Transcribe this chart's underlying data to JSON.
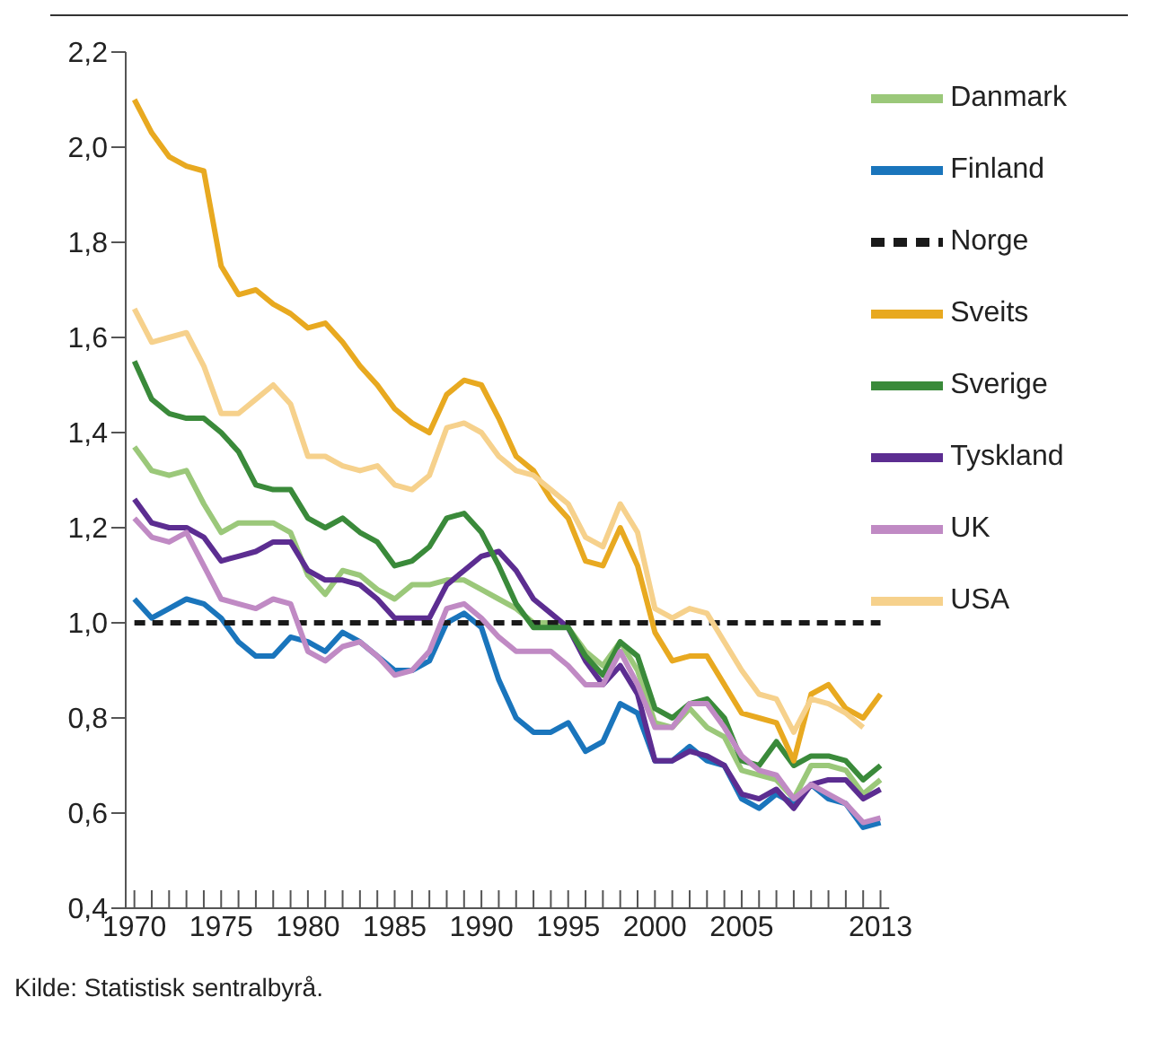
{
  "chart_data": {
    "type": "line",
    "x": [
      1970,
      1971,
      1972,
      1973,
      1974,
      1975,
      1976,
      1977,
      1978,
      1979,
      1980,
      1981,
      1982,
      1983,
      1984,
      1985,
      1986,
      1987,
      1988,
      1989,
      1990,
      1991,
      1992,
      1993,
      1994,
      1995,
      1996,
      1997,
      1998,
      1999,
      2000,
      2001,
      2002,
      2003,
      2004,
      2005,
      2006,
      2007,
      2008,
      2009,
      2010,
      2011,
      2012,
      2013
    ],
    "series": [
      {
        "name": "Danmark",
        "color": "#9bc87a",
        "values": [
          1.37,
          1.32,
          1.31,
          1.32,
          1.25,
          1.19,
          1.21,
          1.21,
          1.21,
          1.19,
          1.1,
          1.06,
          1.11,
          1.1,
          1.07,
          1.05,
          1.08,
          1.08,
          1.09,
          1.09,
          1.07,
          1.05,
          1.03,
          1.0,
          1.0,
          0.99,
          0.94,
          0.91,
          0.96,
          0.9,
          0.79,
          0.78,
          0.82,
          0.78,
          0.76,
          0.69,
          0.68,
          0.67,
          0.63,
          0.7,
          0.7,
          0.69,
          0.64,
          0.67
        ]
      },
      {
        "name": "Finland",
        "color": "#1a75bc",
        "values": [
          1.05,
          1.01,
          1.03,
          1.05,
          1.04,
          1.01,
          0.96,
          0.93,
          0.93,
          0.97,
          0.96,
          0.94,
          0.98,
          0.96,
          0.93,
          0.9,
          0.9,
          0.92,
          1.0,
          1.02,
          0.99,
          0.88,
          0.8,
          0.77,
          0.77,
          0.79,
          0.73,
          0.75,
          0.83,
          0.81,
          0.71,
          0.71,
          0.74,
          0.71,
          0.7,
          0.63,
          0.61,
          0.64,
          0.62,
          0.66,
          0.63,
          0.62,
          0.57,
          0.58
        ]
      },
      {
        "name": "Tyskland",
        "color": "#5c2d91",
        "values": [
          1.26,
          1.21,
          1.2,
          1.2,
          1.18,
          1.13,
          1.14,
          1.15,
          1.17,
          1.17,
          1.11,
          1.09,
          1.09,
          1.08,
          1.05,
          1.01,
          1.01,
          1.01,
          1.08,
          1.11,
          1.14,
          1.15,
          1.11,
          1.05,
          1.02,
          0.99,
          0.92,
          0.87,
          0.91,
          0.85,
          0.71,
          0.71,
          0.73,
          0.72,
          0.7,
          0.64,
          0.63,
          0.65,
          0.61,
          0.66,
          0.67,
          0.67,
          0.63,
          0.65
        ]
      },
      {
        "name": "Norge",
        "color": "#1a1a1a",
        "line_style": "dashed",
        "values": [
          1.0,
          1.0,
          1.0,
          1.0,
          1.0,
          1.0,
          1.0,
          1.0,
          1.0,
          1.0,
          1.0,
          1.0,
          1.0,
          1.0,
          1.0,
          1.0,
          1.0,
          1.0,
          1.0,
          1.0,
          1.0,
          1.0,
          1.0,
          1.0,
          1.0,
          1.0,
          1.0,
          1.0,
          1.0,
          1.0,
          1.0,
          1.0,
          1.0,
          1.0,
          1.0,
          1.0,
          1.0,
          1.0,
          1.0,
          1.0,
          1.0,
          1.0,
          1.0,
          1.0
        ]
      },
      {
        "name": "Sverige",
        "color": "#3a8a3a",
        "values": [
          1.55,
          1.47,
          1.44,
          1.43,
          1.43,
          1.4,
          1.36,
          1.29,
          1.28,
          1.28,
          1.22,
          1.2,
          1.22,
          1.19,
          1.17,
          1.12,
          1.13,
          1.16,
          1.22,
          1.23,
          1.19,
          1.12,
          1.04,
          0.99,
          0.99,
          0.99,
          0.93,
          0.89,
          0.96,
          0.93,
          0.82,
          0.8,
          0.83,
          0.84,
          0.8,
          0.71,
          0.7,
          0.75,
          0.7,
          0.72,
          0.72,
          0.71,
          0.67,
          0.7
        ]
      },
      {
        "name": "Sveits",
        "color": "#e8a920",
        "values": [
          2.1,
          2.03,
          1.98,
          1.96,
          1.95,
          1.75,
          1.69,
          1.7,
          1.67,
          1.65,
          1.62,
          1.63,
          1.59,
          1.54,
          1.5,
          1.45,
          1.42,
          1.4,
          1.48,
          1.51,
          1.5,
          1.43,
          1.35,
          1.32,
          1.26,
          1.22,
          1.13,
          1.12,
          1.2,
          1.12,
          0.98,
          0.92,
          0.93,
          0.93,
          0.87,
          0.81,
          0.8,
          0.79,
          0.71,
          0.85,
          0.87,
          0.82,
          0.8,
          0.85
        ]
      },
      {
        "name": "UK",
        "color": "#c08ac4",
        "values": [
          1.22,
          1.18,
          1.17,
          1.19,
          1.12,
          1.05,
          1.04,
          1.03,
          1.05,
          1.04,
          0.94,
          0.92,
          0.95,
          0.96,
          0.93,
          0.89,
          0.9,
          0.94,
          1.03,
          1.04,
          1.01,
          0.97,
          0.94,
          0.94,
          0.94,
          0.91,
          0.87,
          0.87,
          0.94,
          0.87,
          0.78,
          0.78,
          0.83,
          0.83,
          0.78,
          0.72,
          0.69,
          0.68,
          0.63,
          0.66,
          0.64,
          0.62,
          0.58,
          0.59
        ]
      },
      {
        "name": "USA",
        "color": "#f6d18c",
        "values": [
          1.66,
          1.59,
          1.6,
          1.61,
          1.54,
          1.44,
          1.44,
          1.47,
          1.5,
          1.46,
          1.35,
          1.35,
          1.33,
          1.32,
          1.33,
          1.29,
          1.28,
          1.31,
          1.41,
          1.42,
          1.4,
          1.35,
          1.32,
          1.31,
          1.28,
          1.25,
          1.18,
          1.16,
          1.25,
          1.19,
          1.03,
          1.01,
          1.03,
          1.02,
          0.96,
          0.9,
          0.85,
          0.84,
          0.77,
          0.84,
          0.83,
          0.81,
          0.78,
          null
        ]
      }
    ],
    "xlim": [
      1969.5,
      2013.5
    ],
    "xticks": [
      1970,
      {
        "value": 1971,
        "label": null
      },
      {
        "value": 1972,
        "label": null
      },
      {
        "value": 1973,
        "label": null
      },
      {
        "value": 1974,
        "label": null
      },
      1975,
      {
        "value": 1976,
        "label": null
      },
      {
        "value": 1977,
        "label": null
      },
      {
        "value": 1978,
        "label": null
      },
      {
        "value": 1979,
        "label": null
      },
      1980,
      {
        "value": 1981,
        "label": null
      },
      {
        "value": 1982,
        "label": null
      },
      {
        "value": 1983,
        "label": null
      },
      {
        "value": 1984,
        "label": null
      },
      1985,
      {
        "value": 1986,
        "label": null
      },
      {
        "value": 1987,
        "label": null
      },
      {
        "value": 1988,
        "label": null
      },
      {
        "value": 1989,
        "label": null
      },
      1990,
      {
        "value": 1991,
        "label": null
      },
      {
        "value": 1992,
        "label": null
      },
      {
        "value": 1993,
        "label": null
      },
      {
        "value": 1994,
        "label": null
      },
      1995,
      {
        "value": 1996,
        "label": null
      },
      {
        "value": 1997,
        "label": null
      },
      {
        "value": 1998,
        "label": null
      },
      {
        "value": 1999,
        "label": null
      },
      2000,
      {
        "value": 2001,
        "label": null
      },
      {
        "value": 2002,
        "label": null
      },
      {
        "value": 2003,
        "label": null
      },
      {
        "value": 2004,
        "label": null
      },
      2005,
      {
        "value": 2006,
        "label": null
      },
      {
        "value": 2007,
        "label": null
      },
      {
        "value": 2008,
        "label": null
      },
      {
        "value": 2009,
        "label": null
      },
      {
        "value": 2010,
        "label": null
      },
      {
        "value": 2011,
        "label": null
      },
      {
        "value": 2012,
        "label": null
      },
      2013
    ],
    "ylim": [
      0.4,
      2.2
    ],
    "yticks": [
      {
        "value": 0.4,
        "label": "0,4"
      },
      {
        "value": 0.6,
        "label": "0,6"
      },
      {
        "value": 0.8,
        "label": "0,8"
      },
      {
        "value": 1.0,
        "label": "1,0"
      },
      {
        "value": 1.2,
        "label": "1,2"
      },
      {
        "value": 1.4,
        "label": "1,4"
      },
      {
        "value": 1.6,
        "label": "1,6"
      },
      {
        "value": 1.8,
        "label": "1,8"
      },
      {
        "value": 2.0,
        "label": "2,0"
      },
      {
        "value": 2.2,
        "label": "2,2"
      }
    ],
    "grid": false,
    "legend": "top right",
    "marker": "none",
    "line_style": "solid",
    "annotations": [
      "Kilde: Statistisk sentralbyrå."
    ]
  }
}
